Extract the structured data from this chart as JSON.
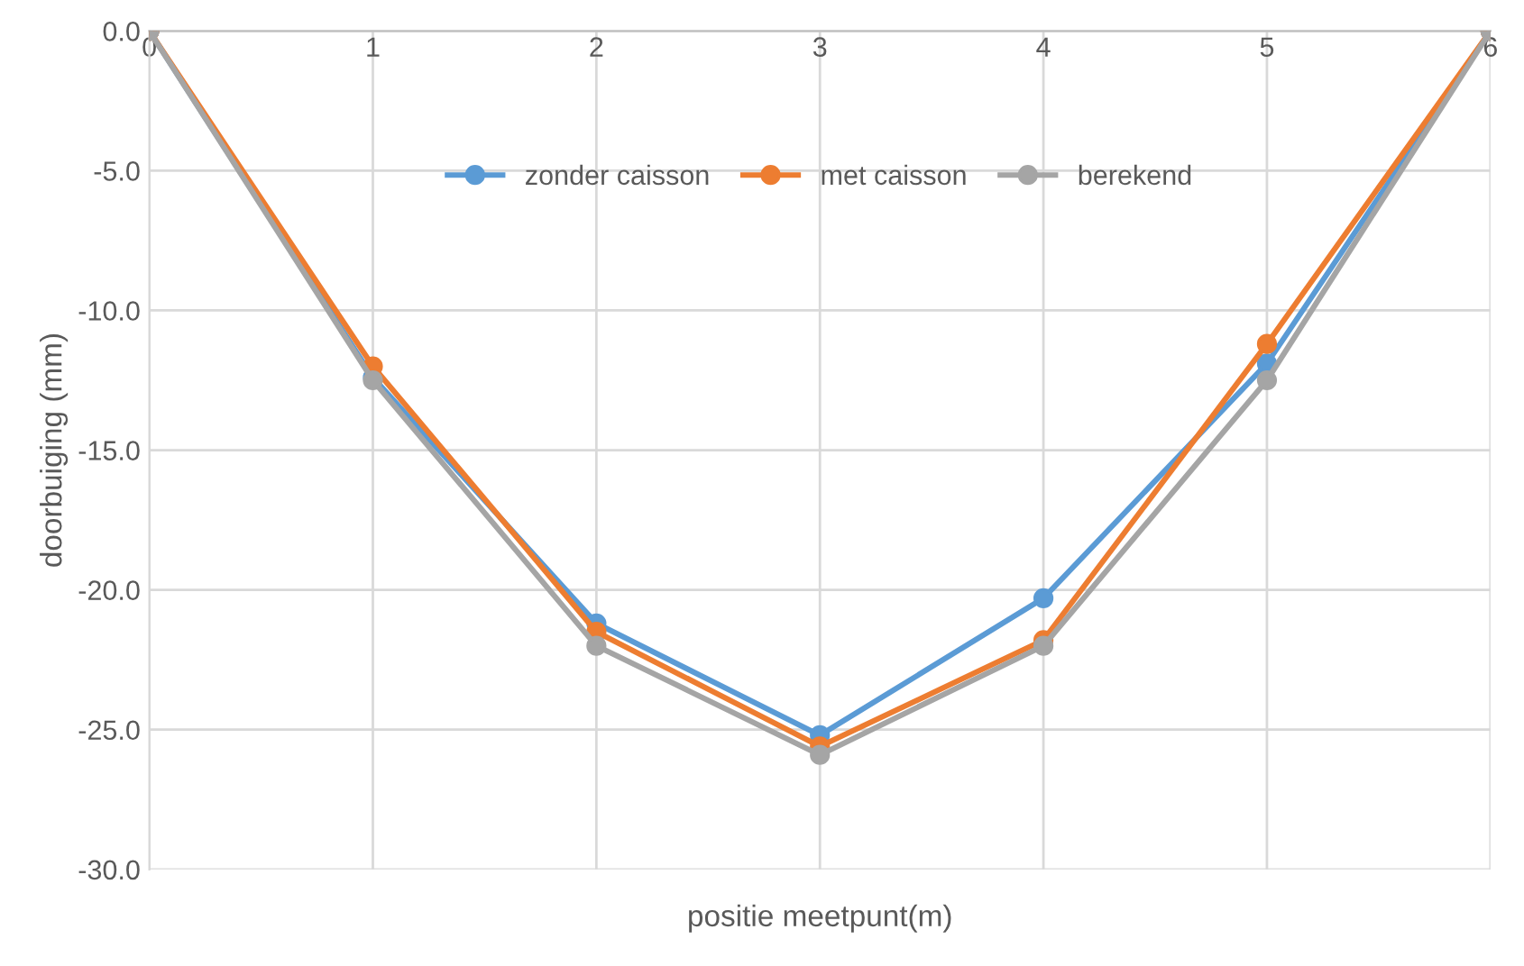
{
  "chart_data": {
    "type": "line",
    "xlabel": "positie meetpunt(m)",
    "ylabel": "doorbuiging (mm)",
    "x": [
      0,
      1,
      2,
      3,
      4,
      5,
      6
    ],
    "series": [
      {
        "name": "zonder caisson",
        "color": "#5b9bd5",
        "values": [
          0,
          -12.4,
          -21.2,
          -25.2,
          -20.3,
          -11.9,
          0
        ]
      },
      {
        "name": "met caisson",
        "color": "#ed7d31",
        "values": [
          0,
          -12.0,
          -21.5,
          -25.6,
          -21.8,
          -11.2,
          0
        ]
      },
      {
        "name": "berekend",
        "color": "#a5a5a5",
        "values": [
          0,
          -12.5,
          -22.0,
          -25.9,
          -22.0,
          -12.5,
          0
        ]
      }
    ],
    "xlim": [
      0,
      6
    ],
    "xticks": [
      0,
      1,
      2,
      3,
      4,
      5,
      6
    ],
    "ylim": [
      -30,
      0
    ],
    "yticks": [
      {
        "value": -30,
        "label": "-30.0"
      },
      {
        "value": -25,
        "label": "-25.0"
      },
      {
        "value": -20,
        "label": "-20.0"
      },
      {
        "value": -15,
        "label": "-15.0"
      },
      {
        "value": -10,
        "label": "-10.0"
      },
      {
        "value": -5,
        "label": "-5.0"
      },
      {
        "value": 0,
        "label": "0.0"
      }
    ],
    "grid": true,
    "legend": "top",
    "marker": "circle",
    "line_style": "solid"
  }
}
